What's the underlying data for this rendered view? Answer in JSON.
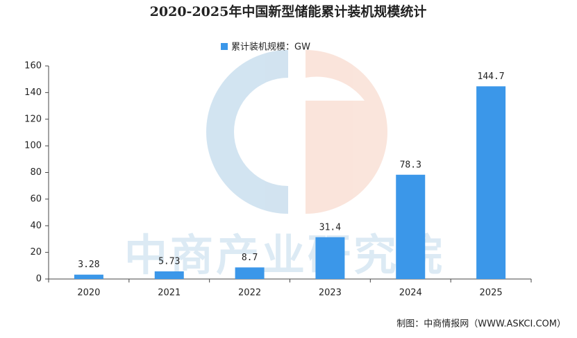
{
  "chart_data": {
    "type": "bar",
    "title": "2020-2025年中国新型储能累计装机规模统计",
    "categories": [
      "2020",
      "2021",
      "2022",
      "2023",
      "2024",
      "2025"
    ],
    "series": [
      {
        "name": "累计装机规模：GW",
        "color": "#3b97e9",
        "values": [
          3.28,
          5.73,
          8.7,
          31.4,
          78.3,
          144.7
        ]
      }
    ],
    "ylim": [
      0,
      160
    ],
    "yticks": [
      0,
      20,
      40,
      60,
      80,
      100,
      120,
      140,
      160
    ],
    "source": "制图：中商情报网（WWW.ASKCI.COM）",
    "watermark": "中商产业研究院"
  }
}
